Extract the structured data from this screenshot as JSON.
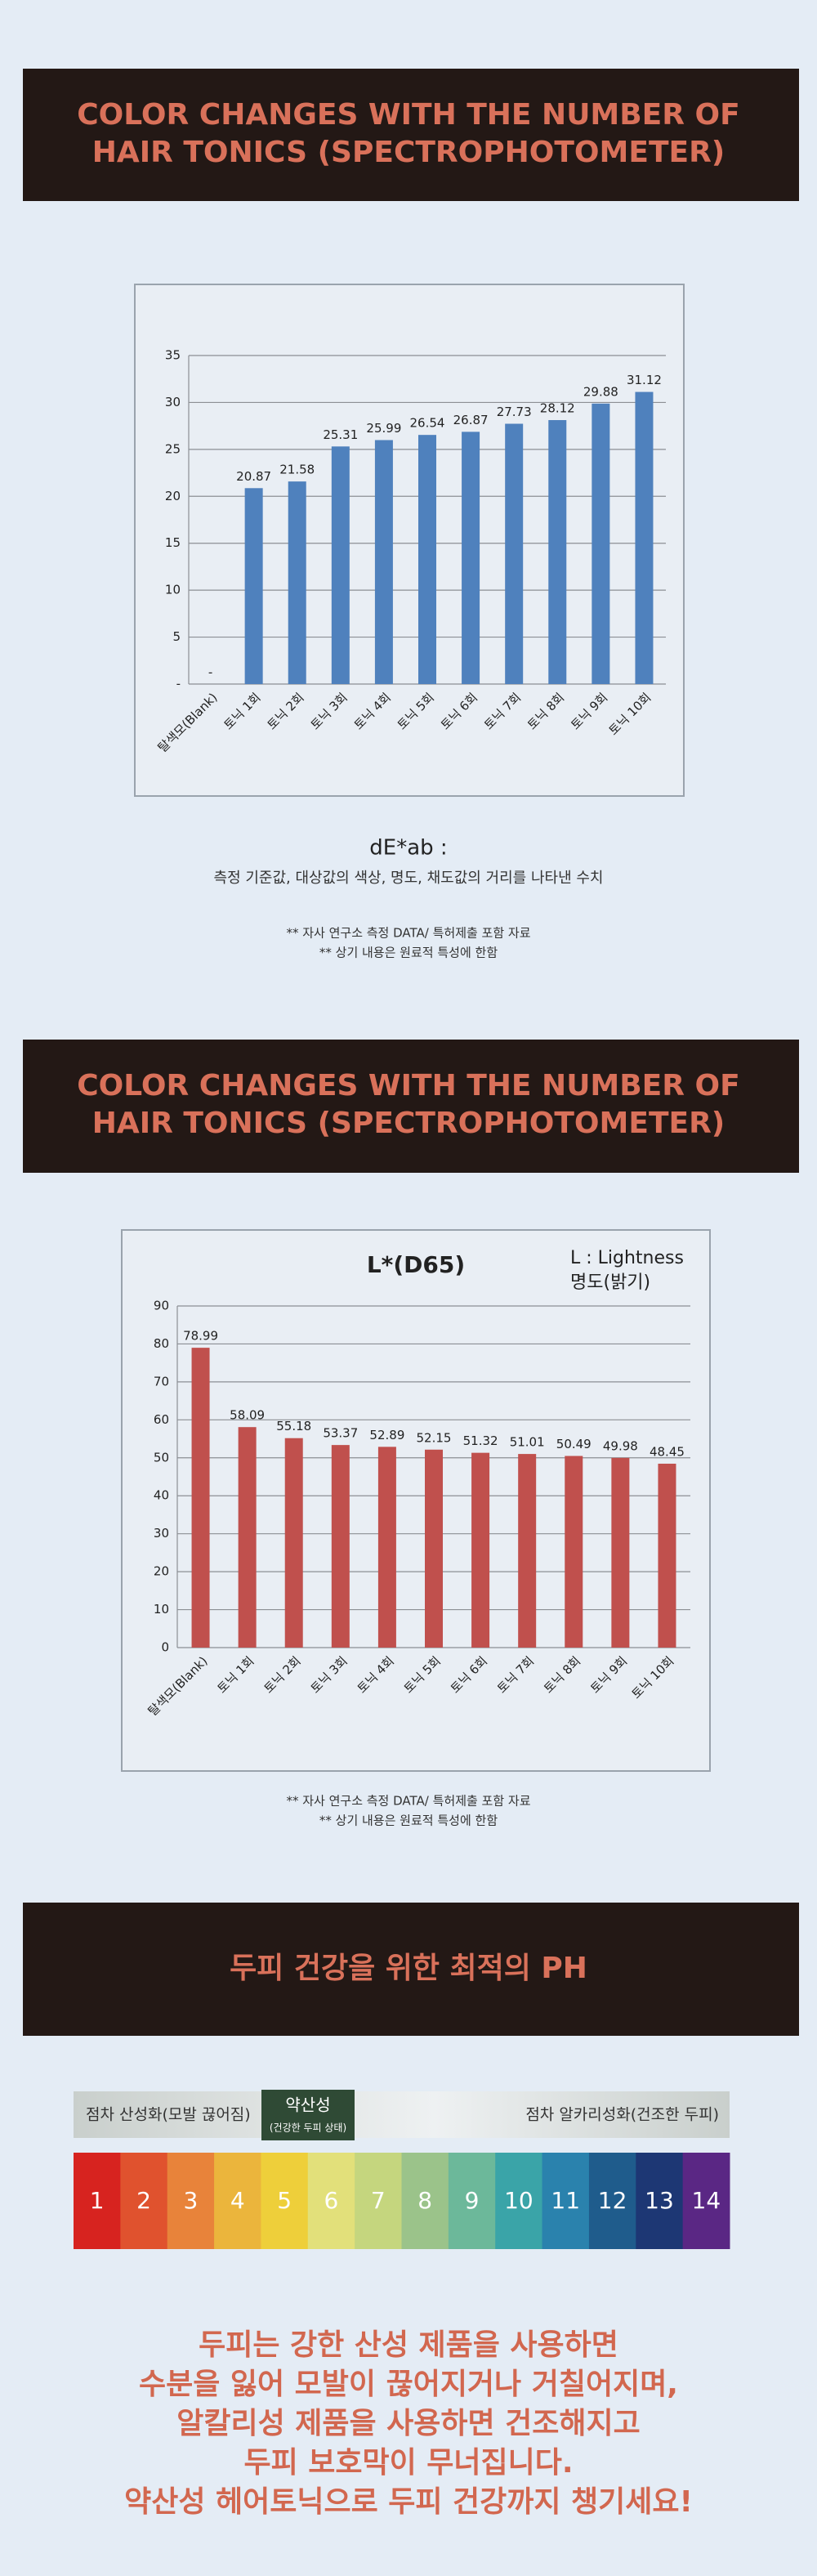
{
  "banners": [
    "COLOR CHANGES WITH THE NUMBER OF HAIR TONICS (SPECTROPHOTOMETER)",
    "COLOR CHANGES WITH THE NUMBER OF HAIR TONICS (SPECTROPHOTOMETER)",
    "두피 건강을 위한 최적의 PH"
  ],
  "chart_data": [
    {
      "type": "bar",
      "color": "#4f81bd",
      "grid": true,
      "categories": [
        "탈색모(Blank)",
        "토닉 1회",
        "토닉 2회",
        "토닉 3회",
        "토닉 4회",
        "토닉 5회",
        "토닉 6회",
        "토닉 7회",
        "토닉 8회",
        "토닉 9회",
        "토닉 10회"
      ],
      "values": [
        0,
        20.87,
        21.58,
        25.31,
        25.99,
        26.54,
        26.87,
        27.73,
        28.12,
        29.88,
        31.12
      ],
      "value_labels": [
        "-",
        "20.87",
        "21.58",
        "25.31",
        "25.99",
        "26.54",
        "26.87",
        "27.73",
        "28.12",
        "29.88",
        "31.12"
      ],
      "ylim": [
        0,
        35
      ],
      "yticks": [
        {
          "value": 0,
          "label": "-"
        },
        5,
        10,
        15,
        20,
        25,
        30,
        35
      ]
    },
    {
      "type": "bar",
      "title": "L*(D65)",
      "annotations": [
        "L : Lightness",
        "명도(밝기)"
      ],
      "color": "#c0504d",
      "grid": true,
      "categories": [
        "탈색모(Blank)",
        "토닉 1회",
        "토닉 2회",
        "토닉 3회",
        "토닉 4회",
        "토닉 5회",
        "토닉 6회",
        "토닉 7회",
        "토닉 8회",
        "토닉 9회",
        "토닉 10회"
      ],
      "values": [
        78.99,
        58.09,
        55.18,
        53.37,
        52.89,
        52.15,
        51.32,
        51.01,
        50.49,
        49.98,
        48.45
      ],
      "ylim": [
        0,
        90
      ],
      "yticks": [
        0,
        10,
        20,
        30,
        40,
        50,
        60,
        70,
        80,
        90
      ]
    }
  ],
  "caption": {
    "title": "dE*ab :",
    "text": "측정 기준값, 대상값의 색상, 명도, 채도값의 거리를 나타낸 수치"
  },
  "notes": [
    "** 자사 연구소 측정 DATA/ 특허제출 포함 자료",
    "** 상기 내용은 원료적 특성에 한함"
  ],
  "ph_scale": {
    "left": "점차 산성화(모발 끊어짐)",
    "center": "약산성",
    "center_sub": "(건강한 두피 상태)",
    "right": "점차 알카리성화(건조한 두피)",
    "levels": [
      1,
      2,
      3,
      4,
      5,
      6,
      7,
      8,
      9,
      10,
      11,
      12,
      13,
      14
    ],
    "colors": [
      "#d7231f",
      "#e0522e",
      "#e8833a",
      "#ebb53c",
      "#eecf3a",
      "#e2e07a",
      "#c5d67e",
      "#9bc38a",
      "#6cb89a",
      "#3aa4a8",
      "#2a82ad",
      "#1f5c8c",
      "#1d3774",
      "#5a2784"
    ]
  },
  "message": [
    "두피는 강한 산성 제품을 사용하면",
    "수분을 잃어 모발이 끊어지거나 거칠어지며,",
    "알칼리성 제품을 사용하면 건조해지고",
    "두피 보호막이 무너집니다.",
    "약산성 헤어토닉으로 두피 건강까지 챙기세요!"
  ]
}
